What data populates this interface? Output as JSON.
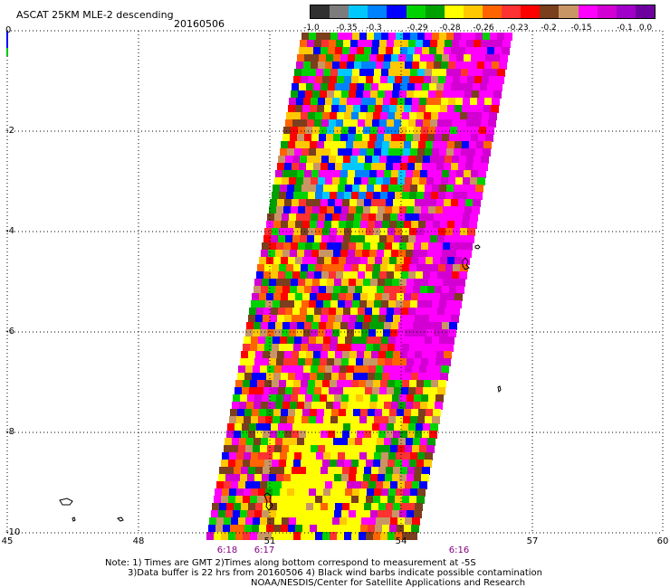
{
  "header": {
    "title": "ASCAT 25KM MLE-2 descending",
    "date": "20160506"
  },
  "legend": {
    "colors": [
      "#303030",
      "#7c7c7c",
      "#00c8ff",
      "#0082ff",
      "#0000ff",
      "#00d200",
      "#00a000",
      "#ffff00",
      "#ffc800",
      "#ff6400",
      "#ff3232",
      "#ff0000",
      "#7b3f1e",
      "#c89664",
      "#ff00ff",
      "#d200d2",
      "#a000c8",
      "#6e00a0"
    ],
    "labels": [
      "-1.0",
      "-0.35",
      "-0.3",
      "-0.29",
      "-0.28",
      "-0.26",
      "-0.23",
      "-0.2",
      "-0.15",
      "-0.1",
      "0.0"
    ]
  },
  "axes": {
    "x_ticks": [
      "45",
      "48",
      "51",
      "54",
      "57",
      "60"
    ],
    "y_ticks": [
      "0",
      "-2",
      "-4",
      "-6",
      "-8",
      "-10"
    ]
  },
  "times": [
    "6:18",
    "6:17",
    "6:16"
  ],
  "notes": [
    "Note: 1) Times are GMT 2)Times along bottom correspond to measurement at -5S",
    "3)Data buffer is 22 hrs from 20160506 4) Black wind barbs indicate possible contamination",
    "NOAA/NESDIS/Center for Satellite Applications and Research"
  ]
}
